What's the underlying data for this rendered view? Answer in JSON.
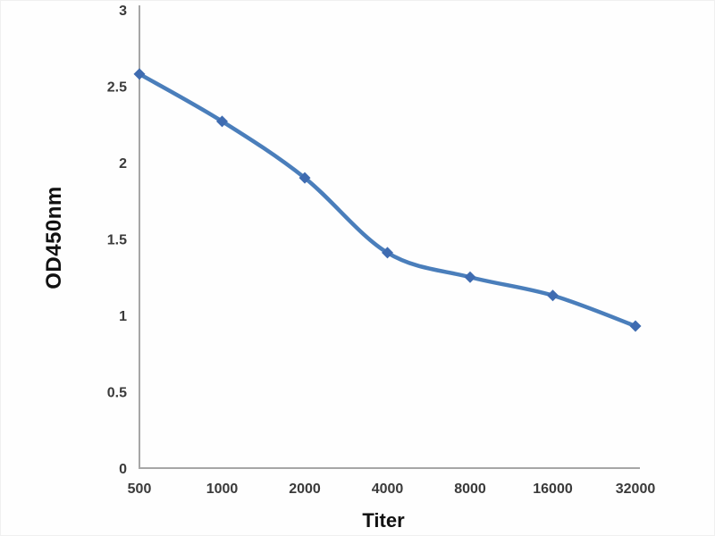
{
  "chart_data": {
    "type": "line",
    "title": "",
    "xlabel": "Titer",
    "ylabel": "OD450nm",
    "categories": [
      "500",
      "1000",
      "2000",
      "4000",
      "8000",
      "16000",
      "32000"
    ],
    "series": [
      {
        "name": "OD450nm",
        "values": [
          2.58,
          2.27,
          1.9,
          1.41,
          1.25,
          1.13,
          0.93
        ]
      }
    ],
    "ylim": [
      0,
      3
    ],
    "yticks": [
      0,
      0.5,
      1,
      1.5,
      2,
      2.5,
      3
    ],
    "ytick_labels": [
      "0",
      "0.5",
      "1",
      "1.5",
      "2",
      "2.5",
      "3"
    ],
    "grid": "off",
    "legend": "none",
    "marker_shape": "diamond",
    "line_smooth": true,
    "colors": {
      "line": "#4a7ebb",
      "marker": "#3f6cb1",
      "axis": "#a6a6a6",
      "tick_text": "#3a3a3a",
      "axis_title_text": "#111111",
      "background": "#fefefe"
    }
  }
}
